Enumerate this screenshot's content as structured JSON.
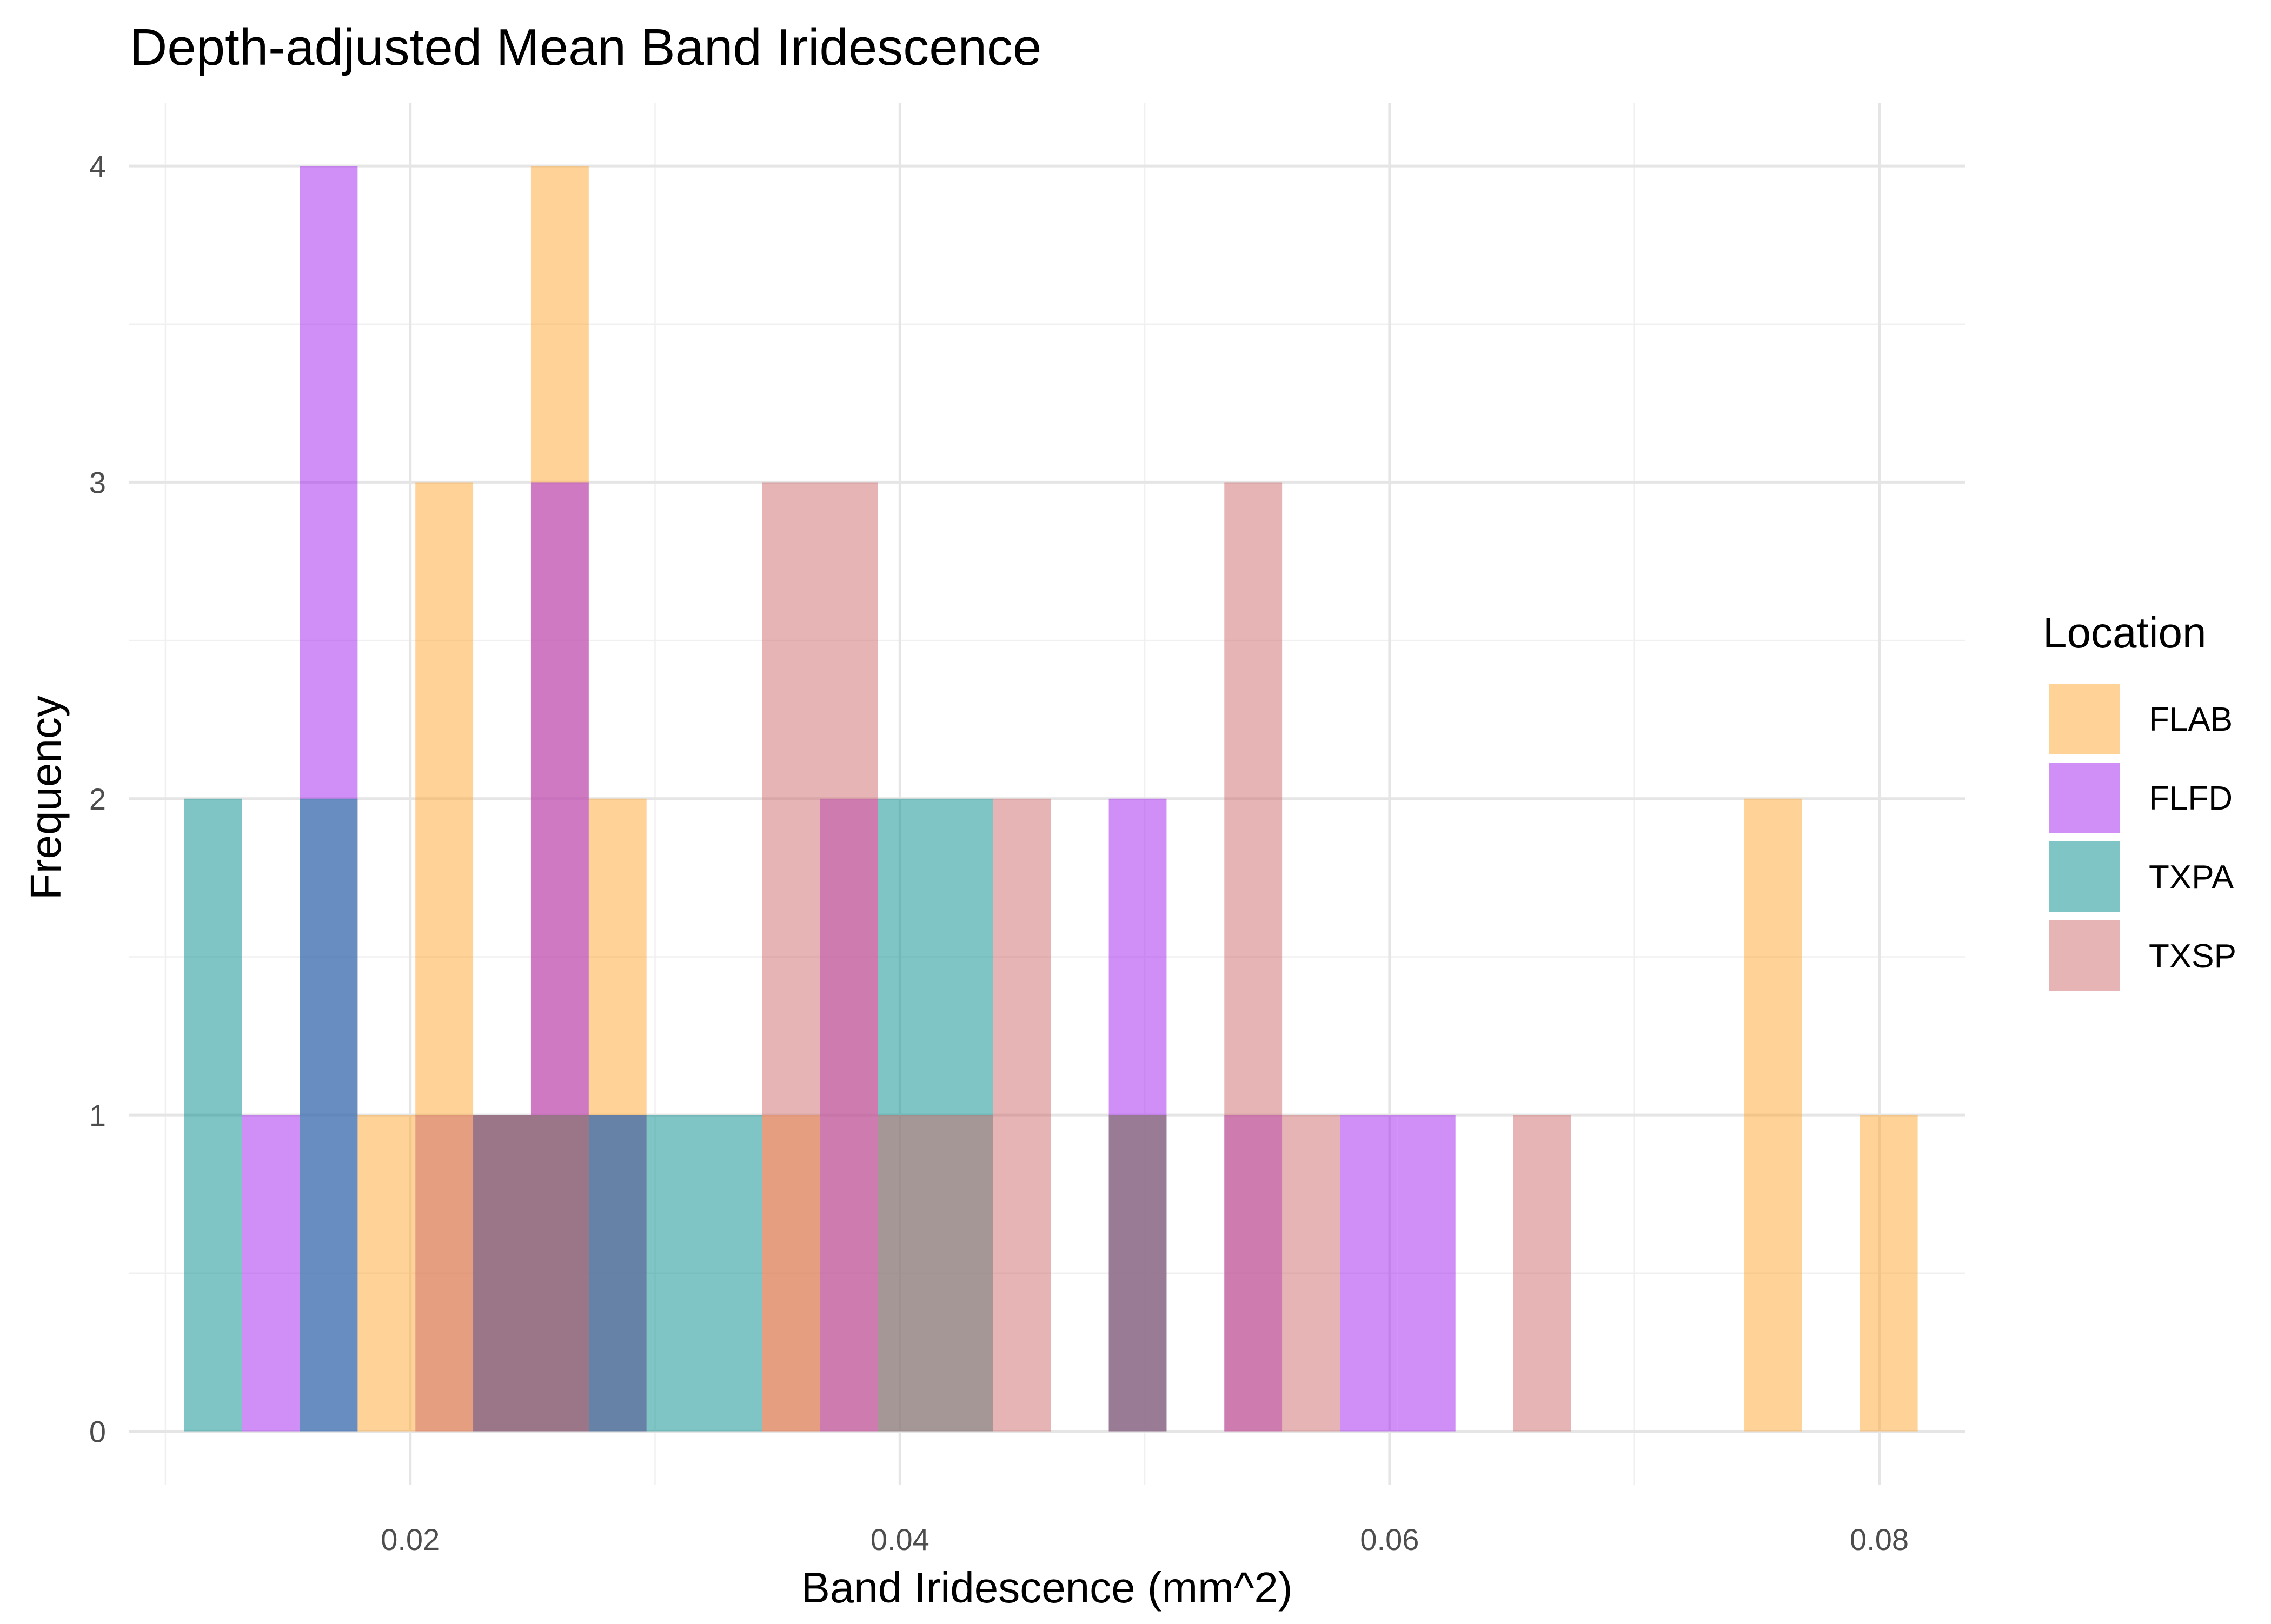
{
  "chart_data": {
    "type": "bar",
    "subtype": "overlapping-histogram",
    "title": "Depth-adjusted Mean Band Iridescence",
    "xlabel": "Band Iridescence (mm^2)",
    "ylabel": "Frequency",
    "xlim": [
      0.0085,
      0.0835
    ],
    "ylim": [
      -0.17,
      4.2
    ],
    "x_ticks": [
      0.02,
      0.04,
      0.06,
      0.08
    ],
    "x_tick_labels": [
      "0.02",
      "0.04",
      "0.06",
      "0.08"
    ],
    "y_ticks": [
      0,
      1,
      2,
      3,
      4
    ],
    "y_tick_labels": [
      "0",
      "1",
      "2",
      "3",
      "4"
    ],
    "grid": true,
    "legend": {
      "title": "Location",
      "position": "right"
    },
    "bin_width": 0.00236,
    "bin_centers": [
      0.01195,
      0.01431,
      0.01667,
      0.01903,
      0.02139,
      0.02375,
      0.02611,
      0.02847,
      0.03083,
      0.03319,
      0.03555,
      0.03791,
      0.04027,
      0.04263,
      0.04499,
      0.04735,
      0.04971,
      0.05207,
      0.05443,
      0.05679,
      0.05915,
      0.06151,
      0.06387,
      0.06623,
      0.06859,
      0.07095,
      0.07331,
      0.07567,
      0.07803,
      0.08039
    ],
    "series": [
      {
        "name": "FLAB",
        "color": "#FFA630",
        "values": [
          0,
          0,
          0,
          1,
          3,
          1,
          4,
          2,
          0,
          0,
          1,
          0,
          0,
          0,
          0,
          0,
          0,
          0,
          0,
          0,
          0,
          0,
          0,
          0,
          0,
          0,
          0,
          2,
          0,
          1
        ]
      },
      {
        "name": "FLFD",
        "color": "#A020F0",
        "values": [
          0,
          1,
          4,
          0,
          0,
          1,
          3,
          1,
          0,
          0,
          0,
          2,
          0,
          0,
          0,
          0,
          2,
          0,
          1,
          0,
          1,
          1,
          0,
          0,
          0,
          0,
          0,
          0,
          0,
          0
        ]
      },
      {
        "name": "TXPA",
        "color": "#008B8B",
        "values": [
          2,
          0,
          2,
          0,
          0,
          1,
          1,
          1,
          1,
          1,
          0,
          0,
          2,
          2,
          0,
          0,
          1,
          0,
          0,
          0,
          0,
          0,
          0,
          0,
          0,
          0,
          0,
          0,
          0,
          0
        ]
      },
      {
        "name": "TXSP",
        "color": "#CD6A6A",
        "values": [
          0,
          0,
          0,
          0,
          1,
          1,
          1,
          0,
          0,
          0,
          3,
          3,
          1,
          1,
          2,
          0,
          1,
          0,
          3,
          1,
          0,
          0,
          0,
          1,
          0,
          0,
          0,
          0,
          0,
          0
        ]
      }
    ]
  }
}
